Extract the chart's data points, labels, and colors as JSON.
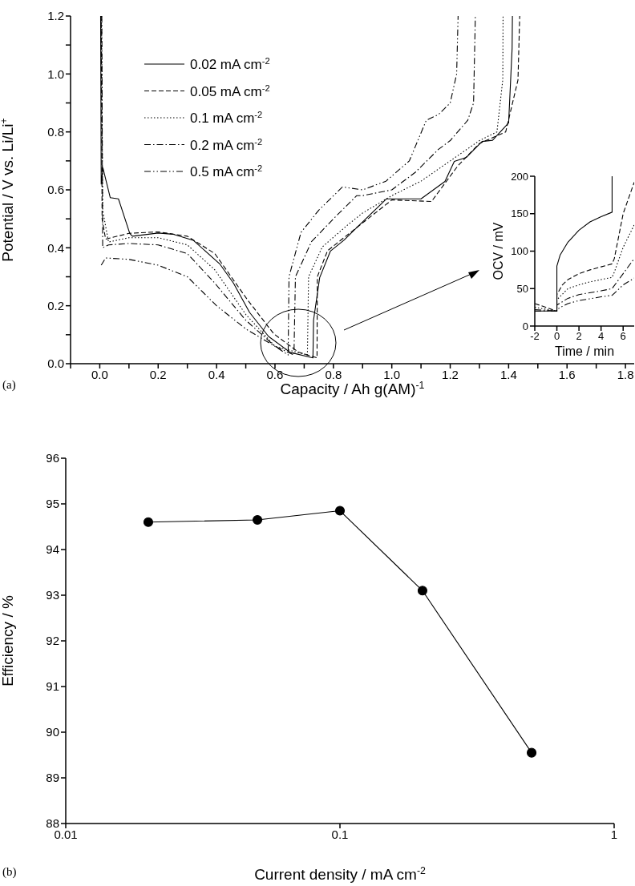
{
  "chart_data": [
    {
      "type": "line",
      "xlabel": "Capacity / Ah g(AM)$^{-1}$",
      "ylabel": "Potential / V vs. Li/Li$^{+}$",
      "xlim": [
        -0.1,
        1.83
      ],
      "ylim": [
        0,
        1.2
      ],
      "xticks": [
        {
          "value": -0.1,
          "label": null
        },
        {
          "value": 0,
          "label": "0.0"
        },
        {
          "value": 0.1,
          "label": null
        },
        {
          "value": 0.2,
          "label": "0.2"
        },
        {
          "value": 0.3,
          "label": null
        },
        {
          "value": 0.4,
          "label": "0.4"
        },
        {
          "value": 0.5,
          "label": null
        },
        {
          "value": 0.6,
          "label": "0.6"
        },
        {
          "value": 0.7,
          "label": null
        },
        {
          "value": 0.8,
          "label": "0.8"
        },
        {
          "value": 0.9,
          "label": null
        },
        {
          "value": 1.0,
          "label": "1.0"
        },
        {
          "value": 1.1,
          "label": null
        },
        {
          "value": 1.2,
          "label": "1.2"
        },
        {
          "value": 1.3,
          "label": null
        },
        {
          "value": 1.4,
          "label": "1.4"
        },
        {
          "value": 1.5,
          "label": null
        },
        {
          "value": 1.6,
          "label": "1.6"
        },
        {
          "value": 1.7,
          "label": null
        },
        {
          "value": 1.8,
          "label": "1.8"
        }
      ],
      "yticks": [
        {
          "value": 0,
          "label": "0.0"
        },
        {
          "value": 0.1,
          "label": null
        },
        {
          "value": 0.2,
          "label": "0.2"
        },
        {
          "value": 0.3,
          "label": null
        },
        {
          "value": 0.4,
          "label": "0.4"
        },
        {
          "value": 0.5,
          "label": null
        },
        {
          "value": 0.6,
          "label": "0.6"
        },
        {
          "value": 0.7,
          "label": null
        },
        {
          "value": 0.8,
          "label": "0.8"
        },
        {
          "value": 0.9,
          "label": null
        },
        {
          "value": 1.0,
          "label": "1.0"
        },
        {
          "value": 1.1,
          "label": null
        },
        {
          "value": 1.2,
          "label": "1.2"
        }
      ],
      "legend": "top left",
      "annotations": [
        "(a)"
      ],
      "series": [
        {
          "name": "0.02 mA cm$^{-2}$",
          "color": "#000000",
          "line_style": "solid",
          "x": [
            0.003,
            0.005,
            0.011,
            0.036,
            0.064,
            0.103,
            0.112,
            0.2,
            0.25,
            0.32,
            0.412,
            0.458,
            0.513,
            0.578,
            0.652,
            0.73,
            0.732,
            0.753,
            0.79,
            0.836,
            0.882,
            0.982,
            1.1,
            1.182,
            1.214,
            1.255,
            1.309,
            1.345,
            1.4,
            1.412,
            1.413
          ],
          "values": [
            1.2,
            0.62,
            0.675,
            0.573,
            0.569,
            0.449,
            0.44,
            0.451,
            0.447,
            0.426,
            0.343,
            0.278,
            0.177,
            0.094,
            0.039,
            0.02,
            0.15,
            0.297,
            0.389,
            0.426,
            0.472,
            0.569,
            0.569,
            0.629,
            0.698,
            0.712,
            0.767,
            0.771,
            0.831,
            1.089,
            1.2
          ]
        },
        {
          "name": "0.05 mA cm$^{-2}$",
          "color": "#000000",
          "line_style": "dashed",
          "x": [
            0.005,
            0.008,
            0.02,
            0.1,
            0.2,
            0.3,
            0.394,
            0.504,
            0.596,
            0.68,
            0.744,
            0.745,
            0.78,
            0.88,
            1.0,
            1.136,
            1.227,
            1.3,
            1.39,
            1.432,
            1.438
          ],
          "values": [
            1.2,
            0.5,
            0.43,
            0.45,
            0.455,
            0.44,
            0.38,
            0.223,
            0.103,
            0.04,
            0.02,
            0.3,
            0.39,
            0.47,
            0.565,
            0.56,
            0.684,
            0.76,
            0.8,
            0.979,
            1.2
          ]
        },
        {
          "name": "0.1 mA cm$^{-2}$",
          "color": "#000000",
          "line_style": "dotted",
          "x": [
            0.006,
            0.01,
            0.03,
            0.1,
            0.2,
            0.3,
            0.394,
            0.5,
            0.6,
            0.711,
            0.715,
            0.762,
            0.85,
            0.9,
            1.0,
            1.1,
            1.2,
            1.3,
            1.36,
            1.38,
            1.381
          ],
          "values": [
            1.2,
            0.53,
            0.42,
            0.435,
            0.435,
            0.41,
            0.324,
            0.17,
            0.06,
            0.03,
            0.3,
            0.403,
            0.48,
            0.52,
            0.58,
            0.63,
            0.7,
            0.77,
            0.8,
            0.98,
            1.2
          ]
        },
        {
          "name": "0.2 mA cm$^{-2}$",
          "color": "#000000",
          "line_style": "dashdot",
          "x": [
            0.007,
            0.01,
            0.03,
            0.1,
            0.2,
            0.3,
            0.394,
            0.5,
            0.6,
            0.665,
            0.67,
            0.725,
            0.8,
            0.88,
            0.9,
            1.0,
            1.08,
            1.16,
            1.2,
            1.26,
            1.28,
            1.286
          ],
          "values": [
            1.2,
            0.4,
            0.41,
            0.415,
            0.41,
            0.38,
            0.278,
            0.15,
            0.06,
            0.03,
            0.3,
            0.421,
            0.5,
            0.58,
            0.58,
            0.6,
            0.66,
            0.74,
            0.77,
            0.84,
            0.9,
            1.2
          ]
        },
        {
          "name": "0.5 mA cm$^{-2}$",
          "color": "#000000",
          "line_style": "dashdotdot",
          "x": [
            0.005,
            0.02,
            0.1,
            0.2,
            0.3,
            0.4,
            0.5,
            0.6,
            0.645,
            0.648,
            0.689,
            0.75,
            0.831,
            0.9,
            0.98,
            1.06,
            1.118,
            1.16,
            1.2,
            1.222,
            1.227
          ],
          "values": [
            0.34,
            0.365,
            0.36,
            0.34,
            0.3,
            0.2,
            0.12,
            0.06,
            0.03,
            0.3,
            0.453,
            0.53,
            0.61,
            0.6,
            0.63,
            0.7,
            0.84,
            0.86,
            0.9,
            1.0,
            1.2
          ]
        }
      ]
    },
    {
      "type": "line",
      "xlabel": "Time / min",
      "ylabel": "OCV / mV",
      "xlim": [
        -2,
        7
      ],
      "ylim": [
        0,
        200
      ],
      "xticks": [
        -2,
        0,
        2,
        4,
        6
      ],
      "yticks": [
        0,
        50,
        100,
        150,
        200
      ],
      "series": [
        {
          "color": "#000000",
          "line_style": "solid",
          "x": [
            -2,
            0,
            0,
            0.3,
            1,
            2,
            3,
            4,
            5,
            5
          ],
          "values": [
            20,
            20,
            80,
            95,
            112,
            128,
            139,
            146,
            152,
            200
          ]
        },
        {
          "color": "#000000",
          "line_style": "dashed",
          "x": [
            -2,
            0,
            0,
            0.5,
            1,
            2,
            3,
            4,
            5,
            5.2,
            6,
            7
          ],
          "values": [
            30,
            20,
            42,
            55,
            62,
            70,
            75,
            79,
            83,
            90,
            150,
            192
          ]
        },
        {
          "color": "#000000",
          "line_style": "dotted",
          "x": [
            -2,
            0,
            0,
            1,
            2,
            3,
            4,
            5,
            5.2,
            6,
            7
          ],
          "values": [
            25,
            20,
            35,
            50,
            55,
            59,
            62,
            65,
            72,
            105,
            135
          ]
        },
        {
          "color": "#000000",
          "line_style": "dashdot",
          "x": [
            -2,
            0,
            0,
            1,
            2,
            4,
            5,
            6,
            7
          ],
          "values": [
            22,
            20,
            28,
            37,
            42,
            47,
            50,
            70,
            90
          ]
        },
        {
          "color": "#000000",
          "line_style": "dashdotdot",
          "x": [
            -2,
            0,
            0.2,
            1,
            2,
            4,
            5,
            5.3,
            6,
            7
          ],
          "values": [
            20,
            20,
            24,
            30,
            34,
            39,
            41,
            45,
            55,
            64
          ]
        }
      ]
    },
    {
      "type": "line",
      "xlabel": "Current density / mA cm$^{-2}$",
      "ylabel": "Efficiency / %",
      "log": "x",
      "xlim": [
        0.01,
        1
      ],
      "xticks": [
        0.01,
        0.1,
        1
      ],
      "ylim": [
        88,
        96
      ],
      "yticks": [
        88,
        89,
        90,
        91,
        92,
        93,
        94,
        95,
        96
      ],
      "marker": "circle",
      "line_style": "solid",
      "annotations": [
        "(b)"
      ],
      "series": [
        {
          "color": "#000000",
          "x": [
            0.02,
            0.05,
            0.1,
            0.2,
            0.5
          ],
          "values": [
            94.6,
            94.65,
            94.85,
            93.1,
            89.55
          ]
        }
      ]
    }
  ]
}
